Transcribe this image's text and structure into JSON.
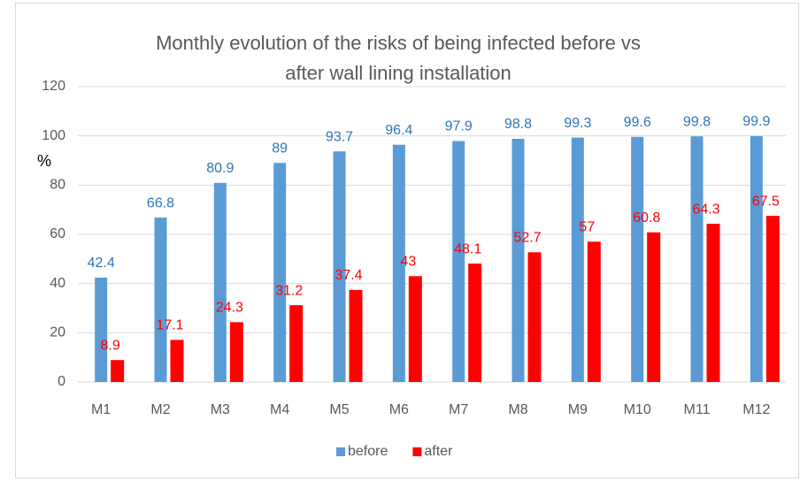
{
  "chart_data": {
    "type": "bar",
    "title": [
      "Monthly evolution of the risks of being infected before vs",
      "after wall lining installation"
    ],
    "y_label": "%",
    "categories": [
      "M1",
      "M2",
      "M3",
      "M4",
      "M5",
      "M6",
      "M7",
      "M8",
      "M9",
      "M10",
      "M11",
      "M12"
    ],
    "series": [
      {
        "name": "before",
        "color": "#5b9bd5",
        "label_color": "#2e75b6",
        "values": [
          42.4,
          66.8,
          80.9,
          89,
          93.7,
          96.4,
          97.9,
          98.8,
          99.3,
          99.6,
          99.8,
          99.9
        ]
      },
      {
        "name": "after",
        "color": "#ff0000",
        "label_color": "#ff0000",
        "values": [
          8.9,
          17.1,
          24.3,
          31.2,
          37.4,
          43,
          48.1,
          52.7,
          57,
          60.8,
          64.3,
          67.5
        ]
      }
    ],
    "ylim": [
      0,
      120
    ],
    "yticks": [
      0,
      20,
      40,
      60,
      80,
      100,
      120
    ],
    "grid": true,
    "legend": "bottom"
  }
}
